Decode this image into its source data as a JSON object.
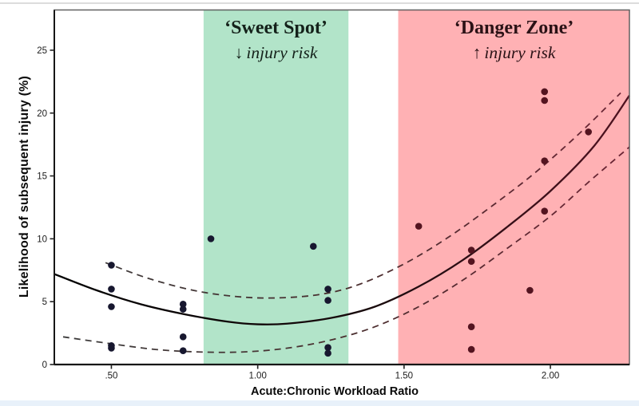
{
  "page": {
    "background": "#ffffff",
    "top_border_color": "#dcdcdc",
    "bottom_strip_color": "#e8f1fa"
  },
  "chart_data": {
    "type": "scatter",
    "title": "",
    "xlabel": "Acute:Chronic Workload Ratio",
    "ylabel": "Likelihood of subsequent injury (%)",
    "xlim": [
      0.305,
      2.27
    ],
    "ylim": [
      0,
      28.2
    ],
    "grid": false,
    "legend": "none",
    "x_ticks": {
      "values": [
        0.5,
        1.0,
        1.5,
        2.0
      ],
      "labels": [
        ".50",
        "1.00",
        "1.50",
        "2.00"
      ]
    },
    "y_ticks": {
      "values": [
        0,
        5,
        10,
        15,
        20,
        25
      ],
      "labels": [
        "0",
        "5",
        "10",
        "15",
        "20",
        "25"
      ]
    },
    "zones": [
      {
        "name": "sweet-spot",
        "label": "‘Sweet Spot’",
        "annotation_arrow": "↓",
        "annotation_text": "injury risk",
        "x_range": [
          0.815,
          1.31
        ],
        "fill": "#b2e4c9",
        "text_color": "#14211a"
      },
      {
        "name": "danger-zone",
        "label": "‘Danger Zone’",
        "annotation_arrow": "↑",
        "annotation_text": "injury risk",
        "x_range": [
          1.48,
          2.27
        ],
        "fill": "#ffb1b4",
        "text_color": "#2b1216"
      }
    ],
    "points": [
      [
        0.5,
        7.9
      ],
      [
        0.5,
        6.0
      ],
      [
        0.5,
        4.6
      ],
      [
        0.5,
        1.5
      ],
      [
        0.5,
        1.3
      ],
      [
        0.745,
        4.8
      ],
      [
        0.745,
        4.4
      ],
      [
        0.745,
        2.2
      ],
      [
        0.745,
        1.1
      ],
      [
        0.84,
        10.0
      ],
      [
        1.19,
        9.4
      ],
      [
        1.24,
        6.0
      ],
      [
        1.24,
        5.1
      ],
      [
        1.24,
        1.35
      ],
      [
        1.24,
        0.9
      ],
      [
        1.55,
        11.0
      ],
      [
        1.73,
        9.1
      ],
      [
        1.73,
        8.2
      ],
      [
        1.73,
        3.0
      ],
      [
        1.73,
        1.2
      ],
      [
        1.93,
        5.9
      ],
      [
        1.98,
        21.7
      ],
      [
        1.98,
        21.0
      ],
      [
        1.98,
        16.2
      ],
      [
        1.98,
        12.2
      ],
      [
        2.13,
        18.5
      ]
    ],
    "fit_curve": {
      "style": "solid",
      "samples": [
        [
          0.305,
          7.2
        ],
        [
          0.45,
          5.9
        ],
        [
          0.6,
          4.8
        ],
        [
          0.75,
          4.0
        ],
        [
          0.9,
          3.4
        ],
        [
          1.0,
          3.2
        ],
        [
          1.1,
          3.25
        ],
        [
          1.25,
          3.7
        ],
        [
          1.4,
          4.6
        ],
        [
          1.55,
          6.2
        ],
        [
          1.7,
          8.3
        ],
        [
          1.85,
          10.9
        ],
        [
          2.0,
          13.8
        ],
        [
          2.15,
          17.4
        ],
        [
          2.27,
          21.4
        ]
      ]
    },
    "confidence_upper": {
      "style": "dashed",
      "samples": [
        [
          0.48,
          8.1
        ],
        [
          0.62,
          6.9
        ],
        [
          0.78,
          5.9
        ],
        [
          0.93,
          5.4
        ],
        [
          1.07,
          5.3
        ],
        [
          1.22,
          5.6
        ],
        [
          1.35,
          6.4
        ],
        [
          1.5,
          8.0
        ],
        [
          1.65,
          10.1
        ],
        [
          1.8,
          12.6
        ],
        [
          1.95,
          15.3
        ],
        [
          2.1,
          18.4
        ],
        [
          2.24,
          21.6
        ]
      ]
    },
    "confidence_lower": {
      "style": "dashed",
      "samples": [
        [
          0.335,
          2.2
        ],
        [
          0.5,
          1.65
        ],
        [
          0.65,
          1.2
        ],
        [
          0.8,
          1.0
        ],
        [
          0.95,
          1.0
        ],
        [
          1.1,
          1.3
        ],
        [
          1.25,
          1.95
        ],
        [
          1.4,
          3.0
        ],
        [
          1.55,
          4.6
        ],
        [
          1.7,
          6.7
        ],
        [
          1.85,
          9.2
        ],
        [
          2.0,
          11.8
        ],
        [
          2.13,
          14.5
        ],
        [
          2.27,
          17.3
        ]
      ]
    },
    "style": {
      "point_color": "#17172f",
      "point_color_danger": "#541420",
      "curve_gradient": [
        "#000000",
        "#190b0d",
        "#4f1220"
      ],
      "band_gradient": [
        "#3c3c3c",
        "#4a3030",
        "#6b2434"
      ],
      "axis_color": "#161616",
      "border_color": "#606060",
      "tick_label_color": "#1c1c1c"
    }
  }
}
